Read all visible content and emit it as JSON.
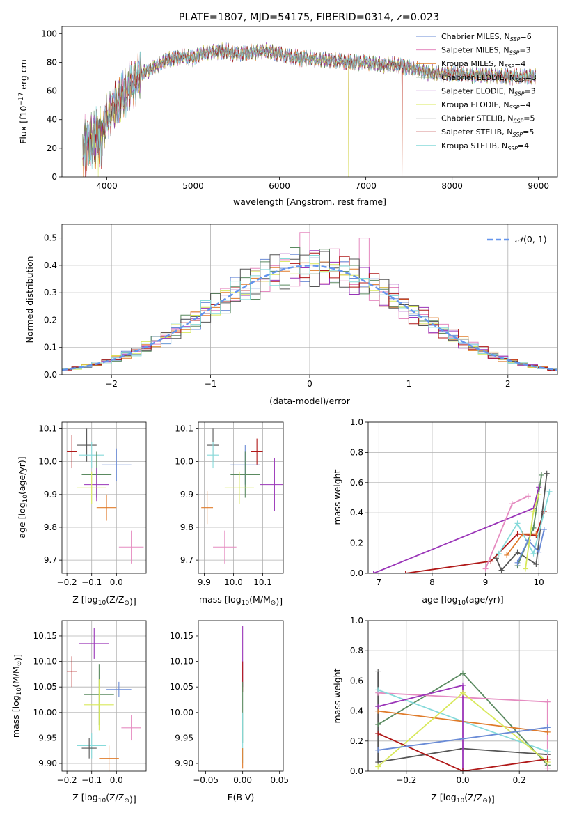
{
  "figure_title": "PLATE=1807, MJD=54175, FIBERID=0314, z=0.023",
  "colors": {
    "chab_miles": "#6a8bd6",
    "salp_miles": "#e58bc0",
    "krou_miles": "#e07b2a",
    "chab_elodie": "#5a8a60",
    "salp_elodie": "#9a34b8",
    "krou_elodie": "#d8e85a",
    "chab_stelib": "#555555",
    "salp_stelib": "#b01818",
    "krou_stelib": "#86dada",
    "gaussian": "#6495ed",
    "grid": "#b0b0b0"
  },
  "chart_data": [
    {
      "id": "spectrum",
      "type": "line",
      "title": "PLATE=1807, MJD=54175, FIBERID=0314, z=0.023",
      "xlabel": "wavelength [Angstrom, rest frame]",
      "ylabel_prefix": "Flux [f",
      "ylabel_suffix": "10",
      "ylabel_exp": "−17",
      "ylabel_units": " erg cm",
      "xlim": [
        3480,
        9220
      ],
      "ylim": [
        0,
        105
      ],
      "xticks": [
        4000,
        5000,
        6000,
        7000,
        8000,
        9000
      ],
      "yticks": [
        0,
        20,
        40,
        60,
        80,
        100
      ],
      "grid": false,
      "legend_position": "top-right",
      "legend": [
        {
          "name": "Chabrier MILES, N",
          "n": "6",
          "color_key": "chab_miles"
        },
        {
          "name": "Salpeter MILES, N",
          "n": "3",
          "color_key": "salp_miles"
        },
        {
          "name": "Kroupa MILES, N",
          "n": "4",
          "color_key": "krou_miles"
        },
        {
          "name": "Chabrier ELODIE, N",
          "n": "3",
          "color_key": "chab_elodie"
        },
        {
          "name": "Salpeter ELODIE, N",
          "n": "3",
          "color_key": "salp_elodie"
        },
        {
          "name": "Kroupa ELODIE, N",
          "n": "4",
          "color_key": "krou_elodie"
        },
        {
          "name": "Chabrier STELIB, N",
          "n": "5",
          "color_key": "chab_stelib"
        },
        {
          "name": "Salpeter STELIB, N",
          "n": "5",
          "color_key": "salp_stelib"
        },
        {
          "name": "Kroupa STELIB, N",
          "n": "4",
          "color_key": "krou_stelib"
        }
      ],
      "continuum_x": [
        3720,
        3800,
        3900,
        3950,
        4000,
        4100,
        4200,
        4300,
        4400,
        4500,
        4600,
        4700,
        4800,
        4900,
        5000,
        5100,
        5200,
        5300,
        5400,
        5500,
        5600,
        5700,
        5800,
        5900,
        6000,
        6100,
        6200,
        6300,
        6400,
        6500,
        6600,
        6700,
        6800,
        6900,
        7000,
        7100,
        7200,
        7300,
        7400,
        7500,
        7600,
        7700,
        7800,
        7900,
        8000,
        8200,
        8400,
        8600,
        8800,
        8970
      ],
      "continuum_y": [
        25,
        28,
        35,
        30,
        42,
        50,
        58,
        65,
        72,
        75,
        78,
        82,
        83,
        84,
        83,
        86,
        87,
        88,
        87,
        86,
        86,
        87,
        88,
        87,
        86,
        84,
        83,
        83,
        82,
        82,
        81,
        81,
        80,
        80,
        80,
        79,
        78,
        78,
        78,
        76,
        75,
        73,
        72,
        72,
        72,
        71,
        71,
        70,
        70,
        70
      ],
      "drops": [
        {
          "series": "krou_elodie",
          "x": 3900
        },
        {
          "series": "krou_elodie",
          "x": 6800
        },
        {
          "series": "salp_miles",
          "x": 6800
        },
        {
          "series": "salp_stelib",
          "x": 7420
        },
        {
          "series": "krou_miles",
          "x": 7420
        }
      ]
    },
    {
      "id": "residuals",
      "type": "histogram",
      "xlabel": "(data-model)/error",
      "ylabel": "Normed distribution",
      "xlim": [
        -2.5,
        2.5
      ],
      "ylim": [
        0,
        0.55
      ],
      "xticks": [
        -2,
        -1,
        0,
        1,
        2
      ],
      "yticks": [
        0.0,
        0.1,
        0.2,
        0.3,
        0.4,
        0.5
      ],
      "grid": true,
      "bin_width": 0.1,
      "legend_position": "top-right",
      "gaussian_label_prefix": "𝒩",
      "gaussian_label_suffix": "(0, 1)"
    },
    {
      "id": "age_vs_Z",
      "type": "errorbar",
      "xlabel_prefix": "Z [log",
      "xlabel_sub": "10",
      "xlabel_suffix": "(Z/Z",
      "xlabel_end": ")]",
      "ylabel_prefix": "age  [log",
      "ylabel_sub": "10",
      "ylabel_suffix": "(age/yr)]",
      "xlim": [
        -0.22,
        0.12
      ],
      "ylim": [
        9.66,
        10.12
      ],
      "xticks": [
        -0.2,
        -0.1,
        0.0
      ],
      "yticks": [
        9.7,
        9.8,
        9.9,
        10.0,
        10.1
      ],
      "grid": true,
      "points": [
        {
          "color_key": "salp_stelib",
          "x": -0.18,
          "xerr": 0.02,
          "y": 10.03,
          "yerr": 0.05
        },
        {
          "color_key": "chab_stelib",
          "x": -0.12,
          "xerr": 0.04,
          "y": 10.05,
          "yerr": 0.05
        },
        {
          "color_key": "krou_stelib",
          "x": -0.1,
          "xerr": 0.05,
          "y": 10.02,
          "yerr": 0.04
        },
        {
          "color_key": "chab_miles",
          "x": 0.0,
          "xerr": 0.06,
          "y": 9.99,
          "yerr": 0.05
        },
        {
          "color_key": "chab_elodie",
          "x": -0.08,
          "xerr": 0.06,
          "y": 9.96,
          "yerr": 0.07
        },
        {
          "color_key": "salp_elodie",
          "x": -0.08,
          "xerr": 0.05,
          "y": 9.93,
          "yerr": 0.05
        },
        {
          "color_key": "krou_elodie",
          "x": -0.1,
          "xerr": 0.06,
          "y": 9.92,
          "yerr": 0.05
        },
        {
          "color_key": "krou_miles",
          "x": -0.04,
          "xerr": 0.04,
          "y": 9.86,
          "yerr": 0.04
        },
        {
          "color_key": "salp_miles",
          "x": 0.06,
          "xerr": 0.05,
          "y": 9.74,
          "yerr": 0.05
        }
      ]
    },
    {
      "id": "age_vs_mass",
      "type": "errorbar",
      "xlabel_prefix": "mass [log",
      "xlabel_sub": "10",
      "xlabel_suffix": "(M/M",
      "xlabel_end": ")]",
      "xlim": [
        9.88,
        10.17
      ],
      "ylim": [
        9.66,
        10.12
      ],
      "xticks": [
        9.9,
        10.0,
        10.1
      ],
      "yticks": [
        9.7,
        9.8,
        9.9,
        10.0,
        10.1
      ],
      "grid": true,
      "points": [
        {
          "color_key": "chab_stelib",
          "x": 9.93,
          "xerr": 0.02,
          "y": 10.05,
          "yerr": 0.05
        },
        {
          "color_key": "krou_stelib",
          "x": 9.93,
          "xerr": 0.02,
          "y": 10.02,
          "yerr": 0.04
        },
        {
          "color_key": "salp_stelib",
          "x": 10.08,
          "xerr": 0.02,
          "y": 10.03,
          "yerr": 0.04
        },
        {
          "color_key": "chab_miles",
          "x": 10.04,
          "xerr": 0.05,
          "y": 9.99,
          "yerr": 0.06
        },
        {
          "color_key": "chab_elodie",
          "x": 10.04,
          "xerr": 0.05,
          "y": 9.96,
          "yerr": 0.07
        },
        {
          "color_key": "salp_elodie",
          "x": 10.14,
          "xerr": 0.05,
          "y": 9.93,
          "yerr": 0.08
        },
        {
          "color_key": "krou_elodie",
          "x": 10.02,
          "xerr": 0.05,
          "y": 9.92,
          "yerr": 0.05
        },
        {
          "color_key": "krou_miles",
          "x": 9.91,
          "xerr": 0.02,
          "y": 9.86,
          "yerr": 0.05
        },
        {
          "color_key": "salp_miles",
          "x": 9.97,
          "xerr": 0.04,
          "y": 9.74,
          "yerr": 0.05
        }
      ]
    },
    {
      "id": "massweight_vs_age",
      "type": "line",
      "xlabel_prefix": "age  [log",
      "xlabel_sub": "10",
      "xlabel_suffix": "(age/yr)]",
      "ylabel": "mass weight",
      "xlim": [
        6.8,
        10.35
      ],
      "ylim": [
        0,
        1.0
      ],
      "xticks": [
        7,
        8,
        9,
        10
      ],
      "yticks": [
        0.0,
        0.2,
        0.4,
        0.6,
        0.8,
        1.0
      ],
      "grid": true,
      "series": [
        {
          "color_key": "salp_elodie",
          "x": [
            6.9,
            9.9,
            10.0
          ],
          "y": [
            0.0,
            0.43,
            0.57
          ]
        },
        {
          "color_key": "salp_stelib",
          "x": [
            7.5,
            9.1,
            9.6,
            9.95,
            10.1
          ],
          "y": [
            0.0,
            0.08,
            0.26,
            0.25,
            0.41
          ]
        },
        {
          "color_key": "salp_miles",
          "x": [
            9.0,
            9.5,
            9.8
          ],
          "y": [
            0.03,
            0.46,
            0.51
          ]
        },
        {
          "color_key": "chab_stelib",
          "x": [
            9.2,
            9.3,
            9.6,
            9.95,
            10.15
          ],
          "y": [
            0.1,
            0.02,
            0.14,
            0.06,
            0.66
          ]
        },
        {
          "color_key": "chab_elodie",
          "x": [
            9.6,
            9.9,
            10.05
          ],
          "y": [
            0.05,
            0.3,
            0.65
          ]
        },
        {
          "color_key": "krou_stelib",
          "x": [
            9.25,
            9.6,
            9.9,
            10.2
          ],
          "y": [
            0.13,
            0.33,
            0.13,
            0.54
          ]
        },
        {
          "color_key": "chab_miles",
          "x": [
            9.6,
            9.8,
            10.0,
            10.1
          ],
          "y": [
            0.07,
            0.22,
            0.14,
            0.29
          ]
        },
        {
          "color_key": "krou_miles",
          "x": [
            9.4,
            9.7,
            9.95
          ],
          "y": [
            0.12,
            0.26,
            0.26
          ]
        },
        {
          "color_key": "krou_elodie",
          "x": [
            9.75,
            9.9,
            10.0
          ],
          "y": [
            0.03,
            0.41,
            0.52
          ]
        }
      ]
    },
    {
      "id": "mass_vs_Z",
      "type": "errorbar",
      "xlabel_prefix": "Z [log",
      "xlabel_sub": "10",
      "xlabel_suffix": "(Z/Z",
      "xlabel_end": ")]",
      "ylabel_prefix": "mass [log",
      "ylabel_sub": "10",
      "ylabel_suffix": "(M/M",
      "ylabel_end": ")]",
      "xlim": [
        -0.22,
        0.12
      ],
      "ylim": [
        9.885,
        10.18
      ],
      "xticks": [
        -0.2,
        -0.1,
        0.0
      ],
      "yticks": [
        9.9,
        9.95,
        10.0,
        10.05,
        10.1,
        10.15
      ],
      "grid": true,
      "points": [
        {
          "color_key": "salp_stelib",
          "x": -0.18,
          "xerr": 0.02,
          "y": 10.08,
          "yerr": 0.03
        },
        {
          "color_key": "salp_elodie",
          "x": -0.09,
          "xerr": 0.06,
          "y": 10.135,
          "yerr": 0.03
        },
        {
          "color_key": "chab_miles",
          "x": 0.01,
          "xerr": 0.05,
          "y": 10.045,
          "yerr": 0.015
        },
        {
          "color_key": "chab_elodie",
          "x": -0.07,
          "xerr": 0.06,
          "y": 10.035,
          "yerr": 0.06
        },
        {
          "color_key": "krou_elodie",
          "x": -0.07,
          "xerr": 0.06,
          "y": 10.015,
          "yerr": 0.05
        },
        {
          "color_key": "salp_miles",
          "x": 0.06,
          "xerr": 0.04,
          "y": 9.97,
          "yerr": 0.025
        },
        {
          "color_key": "krou_stelib",
          "x": -0.1,
          "xerr": 0.06,
          "y": 9.935,
          "yerr": 0.025
        },
        {
          "color_key": "chab_stelib",
          "x": -0.11,
          "xerr": 0.03,
          "y": 9.93,
          "yerr": 0.02
        },
        {
          "color_key": "krou_miles",
          "x": -0.03,
          "xerr": 0.04,
          "y": 9.91,
          "yerr": 0.025
        }
      ]
    },
    {
      "id": "mass_vs_EBV",
      "type": "errorbar",
      "xlabel": "E(B-V)",
      "xlim": [
        -0.06,
        0.055
      ],
      "ylim": [
        9.885,
        10.18
      ],
      "xticks": [
        -0.05,
        0.0,
        0.05
      ],
      "xtick_labels": [
        "−0.05",
        "0.00",
        "0.05"
      ],
      "yticks": [
        9.9,
        9.95,
        10.0,
        10.05,
        10.1,
        10.15
      ],
      "grid": false,
      "points": [
        {
          "color_key": "salp_elodie",
          "x": 0.0,
          "xerr": 0.0,
          "y": 10.11,
          "yerr": 0.06
        },
        {
          "color_key": "salp_stelib",
          "x": 0.0,
          "xerr": 0.0,
          "y": 10.07,
          "yerr": 0.03
        },
        {
          "color_key": "chab_elodie",
          "x": 0.0,
          "xerr": 0.0,
          "y": 10.0,
          "yerr": 0.06
        },
        {
          "color_key": "krou_stelib",
          "x": 0.0,
          "xerr": 0.0,
          "y": 9.95,
          "yerr": 0.05
        },
        {
          "color_key": "krou_miles",
          "x": 0.0,
          "xerr": 0.0,
          "y": 9.91,
          "yerr": 0.02
        }
      ]
    },
    {
      "id": "massweight_vs_Z",
      "type": "line",
      "xlabel_prefix": "Z [log",
      "xlabel_sub": "10",
      "xlabel_suffix": "(Z/Z",
      "xlabel_end": ")]",
      "ylabel": "mass weight",
      "xlim": [
        -0.335,
        0.335
      ],
      "ylim": [
        0,
        1.0
      ],
      "xticks": [
        -0.2,
        0.0,
        0.2
      ],
      "yticks": [
        0.0,
        0.2,
        0.4,
        0.6,
        0.8,
        1.0
      ],
      "grid": true,
      "series": [
        {
          "color_key": "chab_stelib",
          "x": [
            -0.3,
            -0.3,
            0.0,
            0.3
          ],
          "y": [
            0.66,
            0.06,
            0.15,
            0.11
          ]
        },
        {
          "color_key": "chab_elodie",
          "x": [
            -0.3,
            0.0,
            0.3
          ],
          "y": [
            0.31,
            0.65,
            0.04
          ]
        },
        {
          "color_key": "salp_miles",
          "x": [
            -0.3,
            0.3,
            0.3
          ],
          "y": [
            0.52,
            0.46,
            0.02
          ]
        },
        {
          "color_key": "krou_stelib",
          "x": [
            -0.3,
            0.0,
            0.3
          ],
          "y": [
            0.54,
            0.33,
            0.13
          ]
        },
        {
          "color_key": "krou_miles",
          "x": [
            -0.3,
            0.3
          ],
          "y": [
            0.4,
            0.26
          ]
        },
        {
          "color_key": "salp_elodie",
          "x": [
            -0.3,
            0.0,
            0.0
          ],
          "y": [
            0.43,
            0.57,
            0.0
          ]
        },
        {
          "color_key": "krou_elodie",
          "x": [
            -0.3,
            0.0,
            0.3
          ],
          "y": [
            0.03,
            0.52,
            0.06
          ]
        },
        {
          "color_key": "salp_stelib",
          "x": [
            -0.3,
            0.0,
            0.3
          ],
          "y": [
            0.25,
            0.0,
            0.08
          ]
        },
        {
          "color_key": "chab_miles",
          "x": [
            -0.3,
            0.3
          ],
          "y": [
            0.14,
            0.29
          ]
        }
      ]
    }
  ]
}
